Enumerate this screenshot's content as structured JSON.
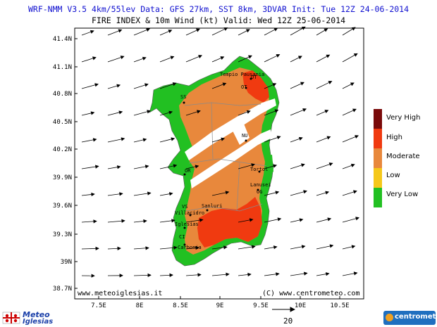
{
  "title_line1": "WRF-NMM V3.5 4km/55lev  Data: GFS 27km, SST 8km, 3DVAR  Init: Tue 12Z 24-06-2014",
  "title_line2": "FIRE INDEX & 10m Wind (kt)  Valid: Wed 12Z 25-06-2014",
  "lat_labels": [
    "41.4N",
    "41.1N",
    "40.8N",
    "40.5N",
    "40.2N",
    "39.9N",
    "39.6N",
    "39.3N",
    "39N",
    "38.7N"
  ],
  "lon_labels": [
    "7.5E",
    "8E",
    "8.5E",
    "9E",
    "9.5E",
    "10E",
    "10.5E"
  ],
  "legend": [
    {
      "label": "Very High",
      "color": "#7a0a0a"
    },
    {
      "label": "High",
      "color": "#f03a10"
    },
    {
      "label": "Moderate",
      "color": "#e8883c"
    },
    {
      "label": "Low",
      "color": "#f5c81a"
    },
    {
      "label": "Very Low",
      "color": "#22c022"
    }
  ],
  "cities": [
    "Tempio Pausania",
    "OT",
    "OT",
    "SS",
    "NU",
    "OR",
    "Tortol",
    "Lanusei",
    "OG",
    "VS",
    "Sanluri",
    "Villacidro",
    "Iglesias",
    "CI",
    "Carbonia"
  ],
  "footer_left": "www.meteoiglesias.it",
  "footer_right": "(C) www.centrometeo.com",
  "wind_reference": "20",
  "logo_left_line1": "Meteo",
  "logo_left_line2": "Iglesias",
  "logo_right": "centrometeo"
}
